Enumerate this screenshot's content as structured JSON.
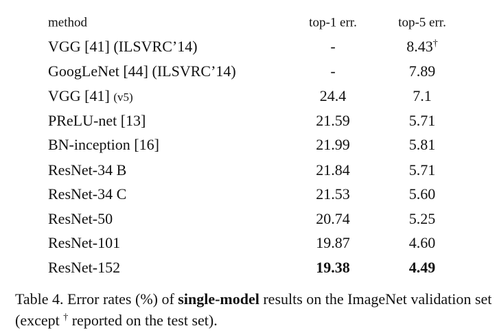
{
  "table": {
    "header": [
      "method",
      "top-1 err.",
      "top-5 err."
    ],
    "groups": [
      [
        {
          "method": "VGG [41] (ILSVRC’14)",
          "top1": "-",
          "top5": "8.43",
          "top5_sup": "†"
        },
        {
          "method": "GoogLeNet [44] (ILSVRC’14)",
          "top1": "-",
          "top5": "7.89"
        }
      ],
      [
        {
          "method": "VGG [41]",
          "method_note": "(v5)",
          "top1": "24.4",
          "top5": "7.1"
        },
        {
          "method": "PReLU-net [13]",
          "top1": "21.59",
          "top5": "5.71"
        },
        {
          "method": "BN-inception [16]",
          "top1": "21.99",
          "top5": "5.81"
        }
      ],
      [
        {
          "method": "ResNet-34 B",
          "top1": "21.84",
          "top5": "5.71"
        },
        {
          "method": "ResNet-34 C",
          "top1": "21.53",
          "top5": "5.60"
        },
        {
          "method": "ResNet-50",
          "top1": "20.74",
          "top5": "5.25"
        },
        {
          "method": "ResNet-101",
          "top1": "19.87",
          "top5": "4.60"
        },
        {
          "method": "ResNet-152",
          "top1": "19.38",
          "top5": "4.49",
          "bold": true
        }
      ]
    ]
  },
  "caption": [
    {
      "text": "Table 4. Error rates (%) of "
    },
    {
      "text": "single-model",
      "style": "bold"
    },
    {
      "text": " results on the ImageNet validation set (except "
    },
    {
      "text": "†",
      "style": "sup"
    },
    {
      "text": " reported on the test set)."
    }
  ]
}
